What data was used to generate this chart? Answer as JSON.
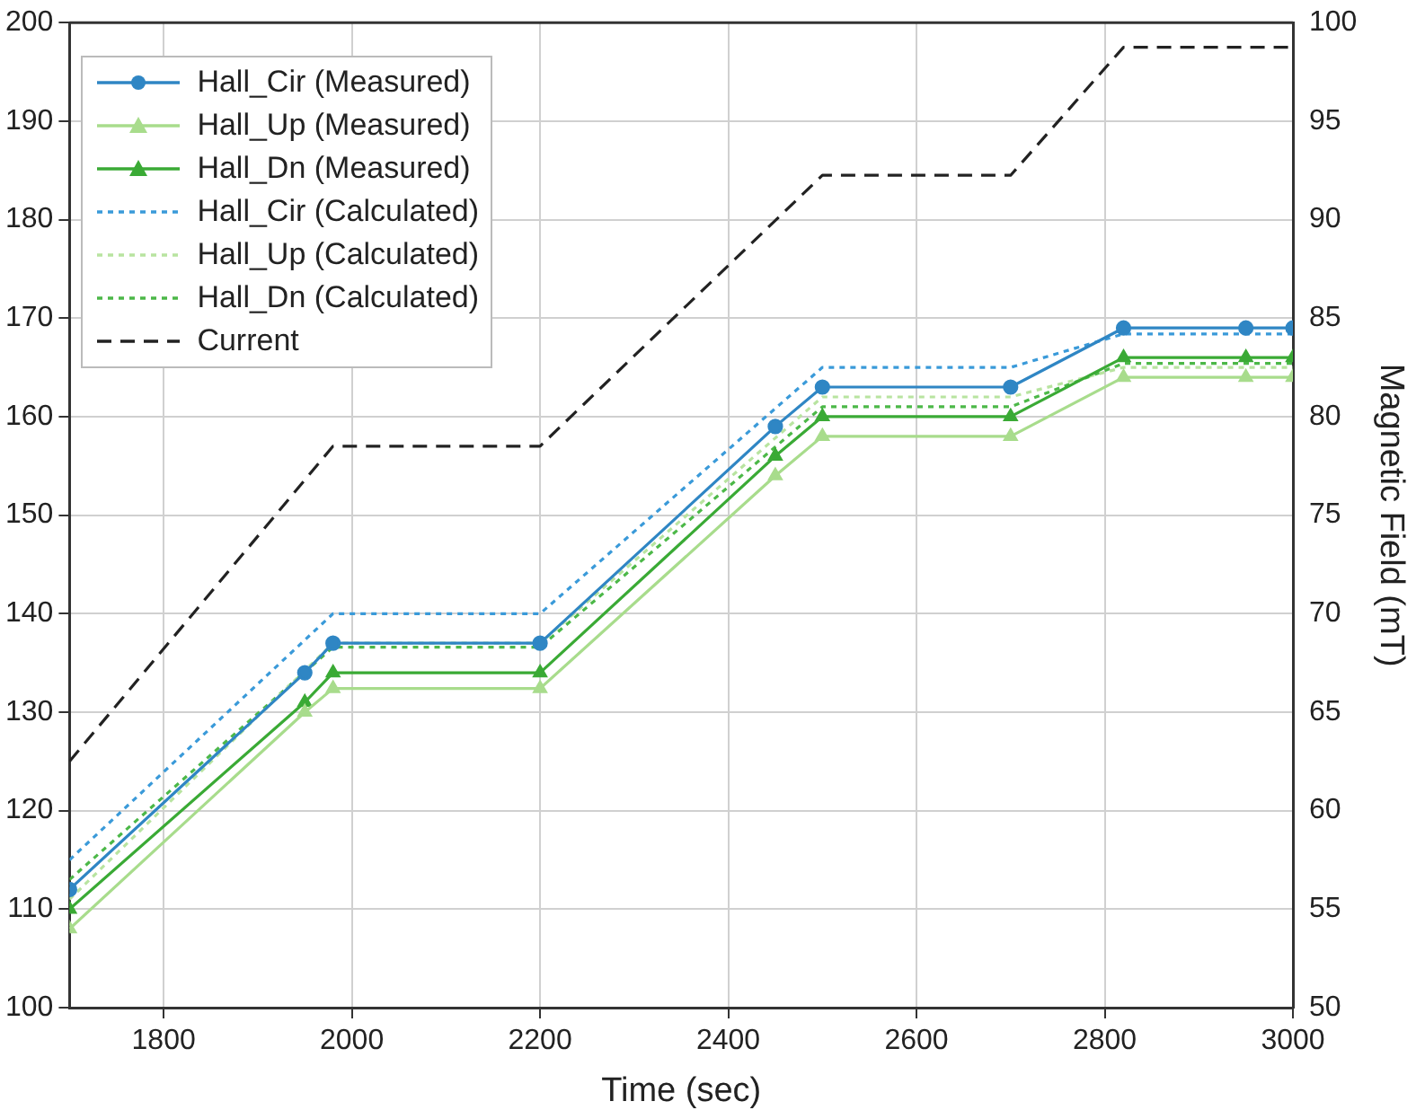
{
  "chart_data": {
    "type": "line",
    "xlabel": "Time (sec)",
    "y2label": "Magnetic Field (mT)",
    "xlim": [
      1700,
      3000
    ],
    "xticks": [
      1800,
      2000,
      2200,
      2400,
      2600,
      2800,
      3000
    ],
    "ylim": [
      100,
      200
    ],
    "yticks": [
      100,
      110,
      120,
      130,
      140,
      150,
      160,
      170,
      180,
      190,
      200
    ],
    "y2lim": [
      50,
      100
    ],
    "y2ticks": [
      50,
      55,
      60,
      65,
      70,
      75,
      80,
      85,
      90,
      95,
      100
    ],
    "grid": true,
    "legend": "top left",
    "series": [
      {
        "name": "Hall_Cir (Measured)",
        "color": "#2f86c4",
        "axis": "y2",
        "marker": "circle",
        "line_style": "solid",
        "x": [
          1700,
          1950,
          1980,
          2200,
          2450,
          2500,
          2700,
          2820,
          2950,
          3000
        ],
        "values": [
          56,
          67,
          68.5,
          68.5,
          79.5,
          81.5,
          81.5,
          84.5,
          84.5,
          84.5
        ]
      },
      {
        "name": "Hall_Up (Measured)",
        "color": "#a8dc8c",
        "axis": "y2",
        "marker": "triangle",
        "line_style": "solid",
        "x": [
          1700,
          1950,
          1980,
          2200,
          2450,
          2500,
          2700,
          2820,
          2950,
          3000
        ],
        "values": [
          54,
          65,
          66.2,
          66.2,
          77,
          79,
          79,
          82,
          82,
          82
        ]
      },
      {
        "name": "Hall_Dn (Measured)",
        "color": "#3aaa35",
        "axis": "y2",
        "marker": "triangle",
        "line_style": "solid",
        "x": [
          1700,
          1950,
          1980,
          2200,
          2450,
          2500,
          2700,
          2820,
          2950,
          3000
        ],
        "values": [
          55,
          65.5,
          67,
          67,
          78,
          80,
          80,
          83,
          83,
          83
        ]
      },
      {
        "name": "Hall_Cir (Calculated)",
        "color": "#3a9ad9",
        "axis": "y2",
        "marker": "none",
        "line_style": "dotted",
        "x": [
          1700,
          1980,
          2200,
          2500,
          2700,
          2820,
          3000
        ],
        "values": [
          57.5,
          70,
          70,
          82.5,
          82.5,
          84.2,
          84.2
        ]
      },
      {
        "name": "Hall_Up (Calculated)",
        "color": "#b8e4a0",
        "axis": "y2",
        "marker": "none",
        "line_style": "dotted",
        "x": [
          1700,
          1980,
          2200,
          2500,
          2700,
          2820,
          3000
        ],
        "values": [
          55.5,
          68.5,
          68.5,
          81,
          81,
          82.5,
          82.5
        ]
      },
      {
        "name": "Hall_Dn (Calculated)",
        "color": "#4cb848",
        "axis": "y2",
        "marker": "none",
        "line_style": "dotted",
        "x": [
          1700,
          1980,
          2200,
          2500,
          2700,
          2820,
          3000
        ],
        "values": [
          56.5,
          68.3,
          68.3,
          80.5,
          80.5,
          82.7,
          82.7
        ]
      },
      {
        "name": "Current",
        "color": "#222222",
        "axis": "y",
        "marker": "none",
        "line_style": "dashed",
        "x": [
          1700,
          1980,
          2200,
          2500,
          2700,
          2820,
          3000
        ],
        "values": [
          125,
          157,
          157,
          184.5,
          184.5,
          197.5,
          197.5
        ]
      }
    ]
  }
}
